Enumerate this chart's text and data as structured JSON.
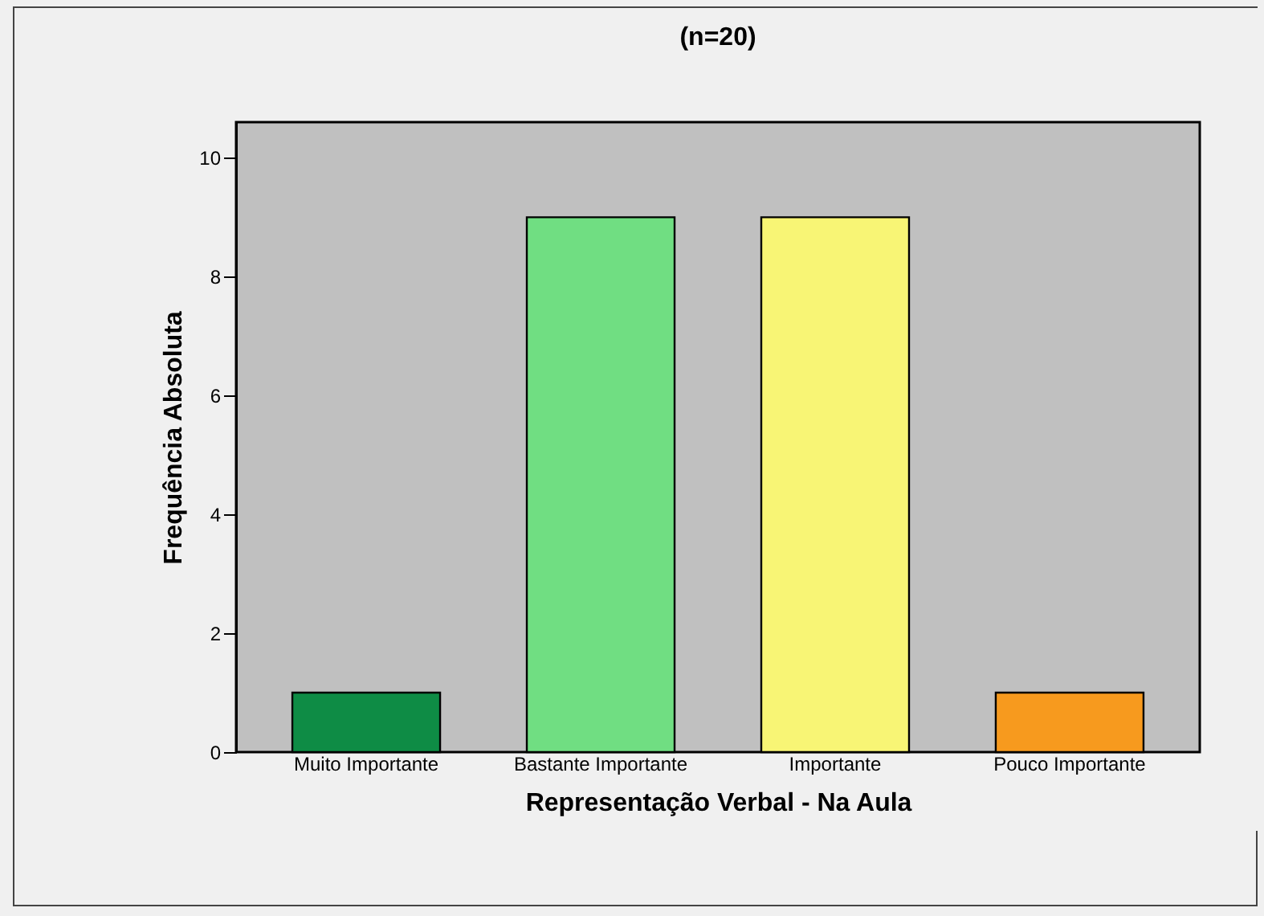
{
  "chart_data": {
    "type": "bar",
    "title": "(n=20)",
    "xlabel": "Representação Verbal - Na Aula",
    "ylabel": "Frequência Absoluta",
    "categories": [
      "Muito Importante",
      "Bastante Importante",
      "Importante",
      "Pouco Importante"
    ],
    "values": [
      1,
      9,
      9,
      1
    ],
    "colors": [
      "#0e8c45",
      "#70de82",
      "#f8f575",
      "#f79a1e"
    ],
    "ylim": [
      0,
      10.6
    ],
    "yticks": [
      0,
      2,
      4,
      6,
      8,
      10
    ],
    "grid": false
  }
}
